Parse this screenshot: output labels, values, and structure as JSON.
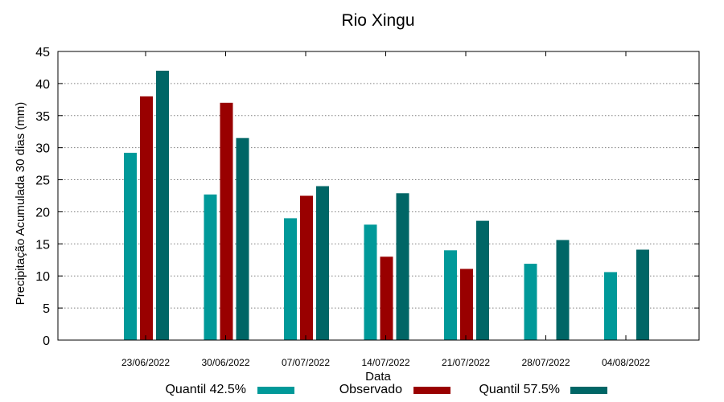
{
  "chart_data": {
    "type": "bar",
    "title": "Rio Xingu",
    "xlabel": "Data",
    "ylabel": "Precipitação Acumulada 30 dias (mm)",
    "ylim": [
      0,
      45
    ],
    "yticks": [
      "0",
      "5",
      "10",
      "15",
      "20",
      "25",
      "30",
      "35",
      "40",
      "45"
    ],
    "grid": true,
    "legend_position": "bottom",
    "categories": [
      "23/06/2022",
      "30/06/2022",
      "07/07/2022",
      "14/07/2022",
      "21/07/2022",
      "28/07/2022",
      "04/08/2022"
    ],
    "series": [
      {
        "name": "Quantil 42.5%",
        "color": "#009999",
        "values": [
          29.2,
          22.7,
          19.0,
          18.0,
          14.0,
          11.9,
          10.6
        ]
      },
      {
        "name": "Observado",
        "color": "#990000",
        "values": [
          38.0,
          37.0,
          22.5,
          13.0,
          11.1,
          null,
          null
        ]
      },
      {
        "name": "Quantil 57.5%",
        "color": "#006666",
        "values": [
          42.0,
          31.5,
          24.0,
          22.9,
          18.6,
          15.6,
          14.1
        ]
      }
    ]
  }
}
